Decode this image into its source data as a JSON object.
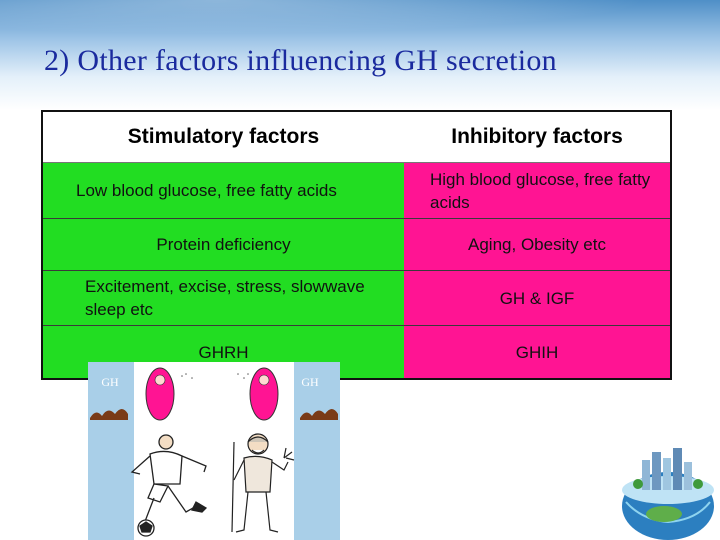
{
  "slide": {
    "title": "2) Other factors influencing GH secretion"
  },
  "table": {
    "headers": {
      "stimulatory": "Stimulatory factors",
      "inhibitory": "Inhibitory factors"
    },
    "rows": [
      {
        "stimulatory": "Low blood glucose, free fatty acids",
        "inhibitory": "High blood glucose, free fatty acids"
      },
      {
        "stimulatory": "Protein deficiency",
        "inhibitory": "Aging, Obesity etc"
      },
      {
        "stimulatory": "Excitement, excise, stress, slowwave sleep etc",
        "inhibitory": "GH & IGF"
      },
      {
        "stimulatory": "GHRH",
        "inhibitory": "GHIH"
      }
    ]
  },
  "illustration": {
    "left_label": "GH",
    "right_label": "GH"
  },
  "colors": {
    "stimulatory_fill": "#22dd22",
    "inhibitory_fill": "#ff1493",
    "title_color": "#1a2a9e"
  }
}
